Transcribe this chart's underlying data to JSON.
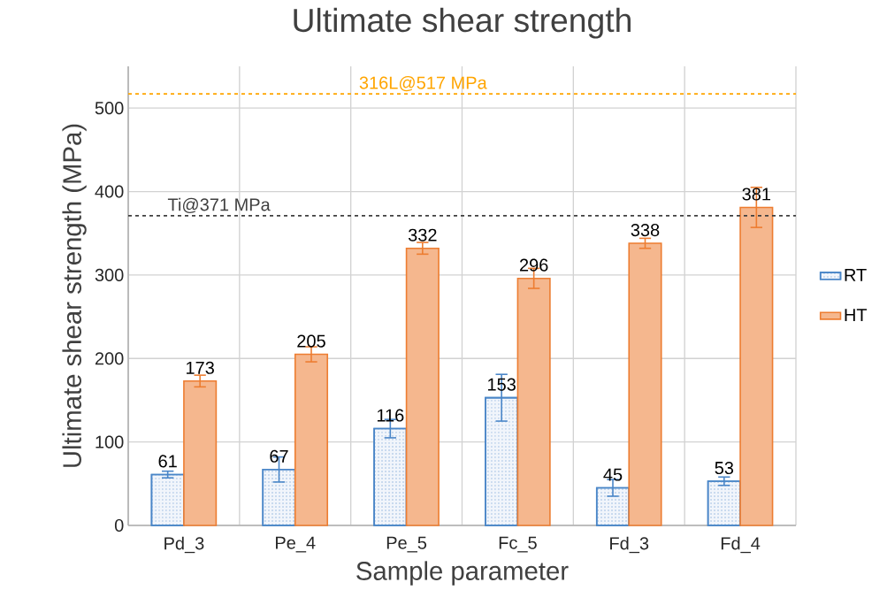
{
  "chart_data": {
    "type": "bar",
    "title": "Ultimate shear strength",
    "xlabel": "Sample parameter",
    "ylabel": "Ultimate shear strength (MPa)",
    "categories": [
      "Pd_3",
      "Pe_4",
      "Pe_5",
      "Fc_5",
      "Fd_3",
      "Fd_4"
    ],
    "series": [
      {
        "name": "RT",
        "color": "#4a86c8",
        "values": [
          61,
          67,
          116,
          153,
          45,
          53
        ],
        "errors": [
          4,
          15,
          11,
          28,
          10,
          5
        ]
      },
      {
        "name": "HT",
        "color": "#ed7d31",
        "values": [
          173,
          205,
          332,
          296,
          338,
          381
        ],
        "errors": [
          7,
          9,
          7,
          12,
          6,
          24
        ]
      }
    ],
    "ylim": [
      0,
      550
    ],
    "yticks": [
      0,
      100,
      200,
      300,
      400,
      500
    ],
    "grid": true,
    "legend": "right",
    "data_labels": true,
    "ref_lines": [
      {
        "axis": "y",
        "value": 517,
        "label": "316L@517 MPa",
        "color": "#ffa500",
        "line_style": "dashed"
      },
      {
        "axis": "y",
        "value": 371,
        "label": "Ti@371 MPa",
        "color": "#404040",
        "line_style": "dashed"
      }
    ]
  }
}
